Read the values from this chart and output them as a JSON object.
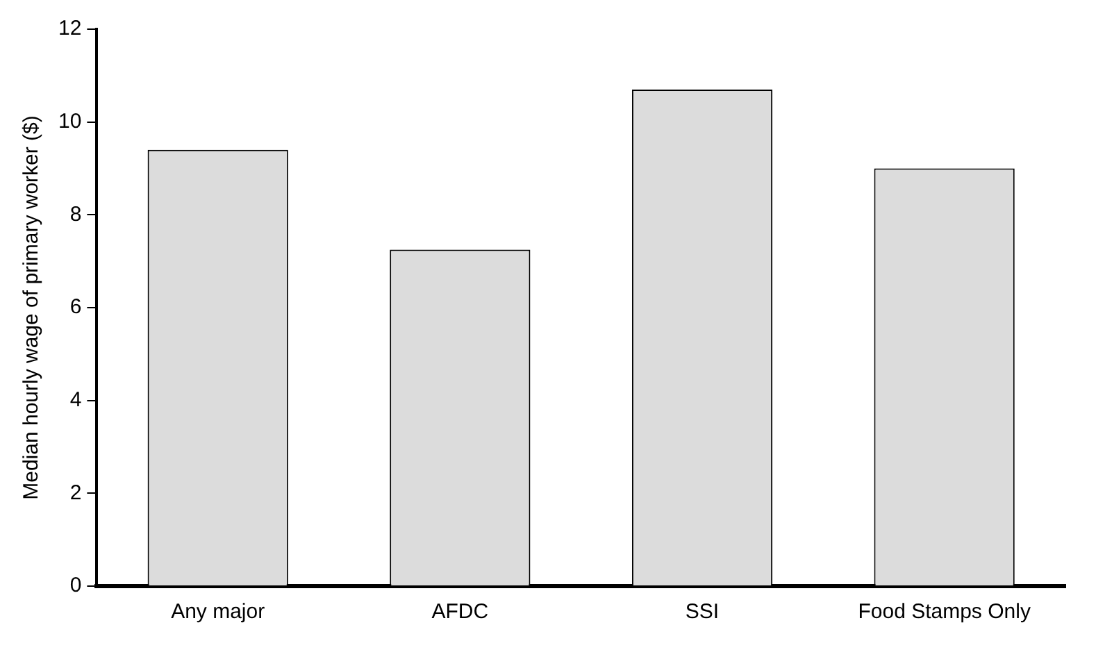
{
  "chart_data": {
    "type": "bar",
    "ylabel": "Median hourly wage of primary worker ($)",
    "categories": [
      "Any major",
      "AFDC",
      "SSI",
      "Food Stamps Only"
    ],
    "values": [
      9.4,
      7.25,
      10.7,
      9.0
    ],
    "color": "#dcdcdc",
    "ylim": [
      0,
      12
    ],
    "yticks": [
      0,
      2,
      4,
      6,
      8,
      10,
      12
    ],
    "grid": false,
    "legend": false
  }
}
